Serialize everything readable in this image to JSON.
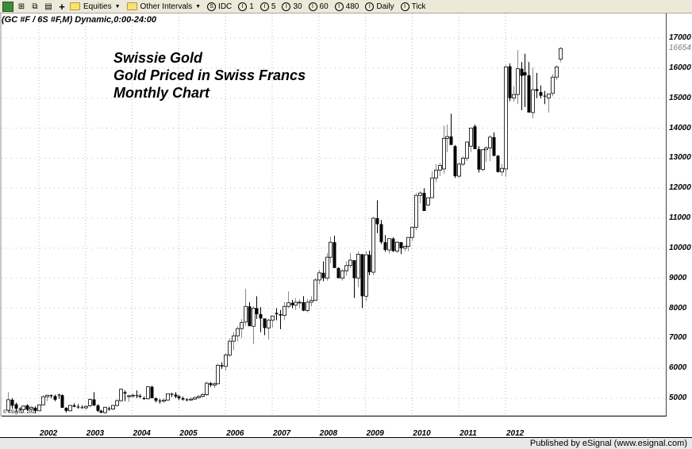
{
  "toolbar": {
    "items": [
      {
        "label": "Equities",
        "type": "dropdown"
      },
      {
        "label": "Other Intervals",
        "type": "dropdown"
      },
      {
        "label": "IDC",
        "glyph": "S"
      },
      {
        "label": "1",
        "glyph": "I"
      },
      {
        "label": "5",
        "glyph": "I"
      },
      {
        "label": "30",
        "glyph": "I"
      },
      {
        "label": "60",
        "glyph": "I"
      },
      {
        "label": "480",
        "glyph": "I"
      },
      {
        "label": "Daily",
        "glyph": "I"
      },
      {
        "label": "Tick",
        "glyph": "I"
      }
    ]
  },
  "symbol_label": "(GC #F / 6S #F,M) Dynamic,0:00-24:00",
  "copyright": "© eSignal, 2011",
  "published": "Published by eSignal (www.esignal.com)",
  "chart_data": {
    "type": "candlestick",
    "title": "Swissie Gold",
    "subtitle_lines": [
      "Gold Priced in Swiss Francs",
      "Monthly Chart"
    ],
    "xlabel": "",
    "ylabel": "",
    "ylim": [
      4400,
      17400
    ],
    "yticks": [
      5000,
      6000,
      7000,
      8000,
      9000,
      10000,
      11000,
      12000,
      13000,
      14000,
      15000,
      16000,
      17000
    ],
    "last_price": "16654",
    "xticks": [
      "2002",
      "2003",
      "2004",
      "2005",
      "2006",
      "2007",
      "2008",
      "2009",
      "2010",
      "2011",
      "2012"
    ],
    "grid": true,
    "start_month": "2001-05",
    "ohlc": [
      [
        4600,
        5200,
        4550,
        4950
      ],
      [
        4950,
        5000,
        4650,
        4750
      ],
      [
        4800,
        4850,
        4550,
        4650
      ],
      [
        4650,
        4700,
        4580,
        4620
      ],
      [
        4620,
        4760,
        4560,
        4740
      ],
      [
        4760,
        4800,
        4580,
        4620
      ],
      [
        4640,
        4740,
        4550,
        4700
      ],
      [
        4680,
        4730,
        4520,
        4580
      ],
      [
        4580,
        4800,
        4560,
        4780
      ],
      [
        4780,
        5100,
        4760,
        5050
      ],
      [
        5050,
        5120,
        4900,
        5100
      ],
      [
        5100,
        5130,
        5000,
        5070
      ],
      [
        5070,
        5120,
        4900,
        4950
      ],
      [
        5120,
        5150,
        4980,
        5100
      ],
      [
        5100,
        5130,
        4700,
        4680
      ],
      [
        4680,
        4700,
        4520,
        4580
      ],
      [
        4580,
        4780,
        4560,
        4760
      ],
      [
        4760,
        4830,
        4700,
        4720
      ],
      [
        4720,
        4800,
        4650,
        4700
      ],
      [
        4700,
        4760,
        4650,
        4680
      ],
      [
        4680,
        4760,
        4620,
        4730
      ],
      [
        4750,
        5000,
        4700,
        4960
      ],
      [
        4960,
        5200,
        4740,
        4760
      ],
      [
        4760,
        4800,
        4540,
        4580
      ],
      [
        4580,
        4620,
        4500,
        4520
      ],
      [
        4520,
        4720,
        4480,
        4700
      ],
      [
        4660,
        4720,
        4580,
        4640
      ],
      [
        4640,
        4780,
        4600,
        4760
      ],
      [
        4760,
        4960,
        4720,
        4920
      ],
      [
        4920,
        5320,
        4880,
        5300
      ],
      [
        5200,
        5260,
        4900,
        5160
      ],
      [
        5060,
        5120,
        4880,
        5080
      ],
      [
        5080,
        5160,
        5000,
        5100
      ],
      [
        5100,
        5260,
        5000,
        5080
      ],
      [
        5080,
        5140,
        5000,
        5050
      ],
      [
        5000,
        5060,
        4940,
        4980
      ],
      [
        4980,
        5400,
        4960,
        5380
      ],
      [
        5380,
        5420,
        5000,
        5000
      ],
      [
        5000,
        5020,
        4860,
        4920
      ],
      [
        4920,
        4980,
        4820,
        4900
      ],
      [
        4900,
        4980,
        4840,
        4940
      ],
      [
        4940,
        5160,
        4920,
        5150
      ],
      [
        5150,
        5180,
        5040,
        5120
      ],
      [
        5120,
        5200,
        5000,
        5060
      ],
      [
        5060,
        5110,
        4940,
        5000
      ],
      [
        5000,
        5060,
        4920,
        4960
      ],
      [
        4960,
        5000,
        4900,
        4940
      ],
      [
        4940,
        5040,
        4930,
        4970
      ],
      [
        4970,
        5060,
        4940,
        5020
      ],
      [
        5020,
        5100,
        4980,
        5060
      ],
      [
        5060,
        5180,
        5020,
        5120
      ],
      [
        5120,
        5560,
        5080,
        5500
      ],
      [
        5500,
        5540,
        5380,
        5440
      ],
      [
        5440,
        5540,
        5340,
        5480
      ],
      [
        5480,
        6160,
        5460,
        6100
      ],
      [
        6100,
        6200,
        5980,
        6060
      ],
      [
        6060,
        6500,
        5920,
        6440
      ],
      [
        6440,
        7000,
        6380,
        6900
      ],
      [
        6900,
        7200,
        6600,
        7080
      ],
      [
        7080,
        7400,
        6900,
        7320
      ],
      [
        7320,
        7640,
        7000,
        7520
      ],
      [
        7540,
        8640,
        7420,
        8060
      ],
      [
        8060,
        8200,
        7540,
        7400
      ],
      [
        7400,
        8060,
        6800,
        8000
      ],
      [
        8000,
        8400,
        7640,
        7800
      ],
      [
        7800,
        8040,
        7200,
        7660
      ],
      [
        7660,
        7600,
        7100,
        7340
      ],
      [
        7340,
        7640,
        6960,
        7600
      ],
      [
        7600,
        7700,
        7360,
        7740
      ],
      [
        7840,
        8000,
        7600,
        7800
      ],
      [
        7800,
        7940,
        7300,
        7760
      ],
      [
        7760,
        8200,
        7600,
        8060
      ],
      [
        8060,
        8560,
        8000,
        8180
      ],
      [
        8180,
        8280,
        8000,
        8100
      ],
      [
        8100,
        8340,
        7940,
        8200
      ],
      [
        8200,
        8300,
        8000,
        8200
      ],
      [
        8200,
        8400,
        7900,
        7920
      ],
      [
        7920,
        8300,
        7860,
        8200
      ],
      [
        8200,
        8400,
        8060,
        8260
      ],
      [
        8260,
        9000,
        8240,
        8940
      ],
      [
        8940,
        9280,
        8800,
        9180
      ],
      [
        9180,
        9560,
        8900,
        9000
      ],
      [
        9000,
        9840,
        8920,
        9700
      ],
      [
        9700,
        10380,
        9500,
        10200
      ],
      [
        10200,
        10420,
        9500,
        9340
      ],
      [
        9340,
        9360,
        9000,
        9000
      ],
      [
        9000,
        9300,
        8920,
        9240
      ],
      [
        9240,
        9560,
        9080,
        9420
      ],
      [
        9420,
        9840,
        9340,
        9600
      ],
      [
        9600,
        9600,
        8340,
        9000
      ],
      [
        9000,
        9900,
        8700,
        9800
      ],
      [
        9800,
        9800,
        8000,
        8400
      ],
      [
        8400,
        9900,
        8240,
        9780
      ],
      [
        9780,
        9920,
        9100,
        9200
      ],
      [
        9200,
        11040,
        9100,
        11000
      ],
      [
        11000,
        11600,
        10500,
        10800
      ],
      [
        10800,
        10940,
        10140,
        10200
      ],
      [
        10200,
        10440,
        9880,
        9940
      ],
      [
        9940,
        10320,
        9820,
        10320
      ],
      [
        10320,
        10360,
        9880,
        9900
      ],
      [
        9900,
        10240,
        9840,
        10200
      ],
      [
        10200,
        10200,
        9800,
        10000
      ],
      [
        10000,
        10100,
        9900,
        10060
      ],
      [
        10060,
        10340,
        9900,
        10360
      ],
      [
        10360,
        10720,
        10240,
        10700
      ],
      [
        10700,
        11840,
        10600,
        11760
      ],
      [
        11760,
        11900,
        11500,
        11840
      ],
      [
        11840,
        12000,
        11340,
        11240
      ],
      [
        11440,
        11500,
        11400,
        11680
      ],
      [
        11680,
        12560,
        11700,
        12340
      ],
      [
        12340,
        12800,
        12200,
        12600
      ],
      [
        12600,
        12840,
        12400,
        12760
      ],
      [
        12640,
        14080,
        12480,
        13660
      ],
      [
        13660,
        14120,
        13200,
        13720
      ],
      [
        13720,
        14480,
        13500,
        13440
      ],
      [
        13400,
        13440,
        12340,
        12400
      ],
      [
        12400,
        12860,
        12340,
        12800
      ],
      [
        12800,
        13060,
        12740,
        13000
      ],
      [
        13000,
        13480,
        12900,
        13540
      ],
      [
        13400,
        14000,
        13200,
        14000
      ],
      [
        14060,
        14120,
        13300,
        13300
      ],
      [
        13300,
        13400,
        12520,
        12620
      ],
      [
        12620,
        13300,
        12560,
        13280
      ],
      [
        13280,
        13400,
        12880,
        13340
      ],
      [
        13340,
        13760,
        12900,
        13700
      ],
      [
        13700,
        13860,
        13060,
        13080
      ],
      [
        13080,
        13100,
        12520,
        12540
      ],
      [
        12540,
        12800,
        12400,
        12660
      ],
      [
        12640,
        16100,
        12380,
        16040
      ],
      [
        16060,
        16160,
        14900,
        15000
      ],
      [
        15000,
        15400,
        14880,
        15120
      ],
      [
        15120,
        16600,
        14800,
        15980
      ],
      [
        15980,
        16200,
        14600,
        15740
      ],
      [
        15860,
        16480,
        14700,
        15760
      ],
      [
        15760,
        16200,
        14600,
        14520
      ],
      [
        14520,
        16020,
        14320,
        15280
      ],
      [
        15300,
        15840,
        15000,
        15240
      ],
      [
        15200,
        15420,
        15000,
        15080
      ],
      [
        15080,
        15240,
        14800,
        15060
      ],
      [
        15000,
        15100,
        14520,
        15140
      ],
      [
        15160,
        15800,
        15060,
        15700
      ],
      [
        15700,
        16100,
        15600,
        16040
      ],
      [
        16300,
        16700,
        16200,
        16654
      ]
    ]
  }
}
